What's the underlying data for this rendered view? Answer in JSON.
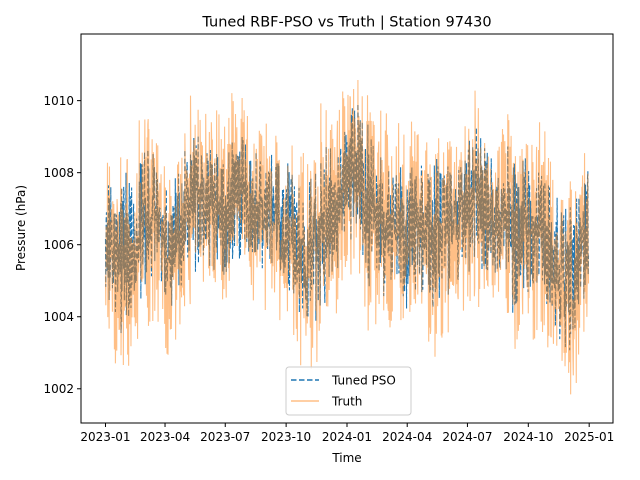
{
  "chart_data": {
    "type": "line",
    "title": "Tuned RBF-PSO vs Truth | Station 97430",
    "xlabel": "Time",
    "ylabel": "Pressure (hPa)",
    "x_range": [
      "2023-01-01",
      "2024-12-31"
    ],
    "xlim": [
      "2022-11-25",
      "2025-02-06"
    ],
    "ylim": [
      1001.05,
      1011.85
    ],
    "x_ticks": [
      "2023-01",
      "2023-04",
      "2023-07",
      "2023-10",
      "2024-01",
      "2024-04",
      "2024-07",
      "2024-10",
      "2025-01"
    ],
    "x_tick_dates": [
      "2023-01-01",
      "2023-04-01",
      "2023-07-01",
      "2023-10-01",
      "2024-01-01",
      "2024-04-01",
      "2024-07-01",
      "2024-10-01",
      "2025-01-01"
    ],
    "y_ticks": [
      1002,
      1004,
      1006,
      1008,
      1010
    ],
    "grid": false,
    "legend_position": "lower center",
    "series": [
      {
        "name": "Tuned PSO",
        "color": "#1f77b4",
        "style": "dashed",
        "envelope_dates": [
          "2023-01-01",
          "2023-01-15",
          "2023-02-01",
          "2023-02-15",
          "2023-03-01",
          "2023-03-15",
          "2023-04-01",
          "2023-04-15",
          "2023-05-01",
          "2023-05-15",
          "2023-06-01",
          "2023-06-15",
          "2023-07-01",
          "2023-07-15",
          "2023-08-01",
          "2023-08-15",
          "2023-09-01",
          "2023-09-15",
          "2023-10-01",
          "2023-10-15",
          "2023-11-01",
          "2023-11-15",
          "2023-12-01",
          "2023-12-15",
          "2024-01-01",
          "2024-01-15",
          "2024-02-01",
          "2024-02-15",
          "2024-03-01",
          "2024-03-15",
          "2024-04-01",
          "2024-04-15",
          "2024-05-01",
          "2024-05-15",
          "2024-06-01",
          "2024-06-15",
          "2024-07-01",
          "2024-07-15",
          "2024-08-01",
          "2024-08-15",
          "2024-09-01",
          "2024-09-15",
          "2024-10-01",
          "2024-10-15",
          "2024-11-01",
          "2024-11-15",
          "2024-12-01",
          "2024-12-15",
          "2024-12-31"
        ],
        "upper": [
          1008.2,
          1007.6,
          1008.6,
          1007.2,
          1009.6,
          1008.6,
          1007.8,
          1007.9,
          1008.8,
          1009.6,
          1008.5,
          1008.9,
          1008.6,
          1009.4,
          1009.0,
          1008.7,
          1009.0,
          1008.7,
          1008.5,
          1008.2,
          1007.6,
          1008.9,
          1009.0,
          1008.4,
          1009.7,
          1010.0,
          1009.8,
          1009.1,
          1008.9,
          1008.6,
          1008.7,
          1008.6,
          1008.3,
          1008.5,
          1008.7,
          1009.2,
          1009.0,
          1009.7,
          1008.6,
          1008.4,
          1009.1,
          1008.5,
          1008.7,
          1008.5,
          1008.2,
          1007.5,
          1007.4,
          1007.6,
          1008.3
        ],
        "lower": [
          1004.6,
          1003.9,
          1003.1,
          1004.5,
          1004.2,
          1004.6,
          1004.3,
          1004.1,
          1004.7,
          1005.1,
          1005.5,
          1005.2,
          1004.9,
          1005.2,
          1005.7,
          1005.2,
          1005.0,
          1005.3,
          1004.4,
          1004.0,
          1003.4,
          1003.5,
          1004.1,
          1004.9,
          1006.1,
          1005.8,
          1004.7,
          1004.8,
          1004.3,
          1004.5,
          1004.1,
          1004.6,
          1004.6,
          1003.6,
          1004.4,
          1004.8,
          1004.9,
          1005.1,
          1004.7,
          1004.9,
          1004.2,
          1003.9,
          1004.1,
          1004.4,
          1004.0,
          1003.3,
          1003.0,
          1003.2,
          1005.1
        ]
      },
      {
        "name": "Truth",
        "color": "#ff7f0e",
        "style": "solid",
        "envelope_dates": [
          "2023-01-01",
          "2023-01-15",
          "2023-02-01",
          "2023-02-15",
          "2023-03-01",
          "2023-03-15",
          "2023-04-01",
          "2023-04-15",
          "2023-05-01",
          "2023-05-15",
          "2023-06-01",
          "2023-06-15",
          "2023-07-01",
          "2023-07-15",
          "2023-08-01",
          "2023-08-15",
          "2023-09-01",
          "2023-09-15",
          "2023-10-01",
          "2023-10-15",
          "2023-11-01",
          "2023-11-15",
          "2023-12-01",
          "2023-12-15",
          "2024-01-01",
          "2024-01-15",
          "2024-02-01",
          "2024-02-15",
          "2024-03-01",
          "2024-03-15",
          "2024-04-01",
          "2024-04-15",
          "2024-05-01",
          "2024-05-15",
          "2024-06-01",
          "2024-06-15",
          "2024-07-01",
          "2024-07-15",
          "2024-08-01",
          "2024-08-15",
          "2024-09-01",
          "2024-09-15",
          "2024-10-01",
          "2024-10-15",
          "2024-11-01",
          "2024-11-15",
          "2024-12-01",
          "2024-12-15",
          "2024-12-31"
        ],
        "upper": [
          1009.4,
          1008.2,
          1009.2,
          1008.0,
          1011.4,
          1009.8,
          1008.6,
          1008.6,
          1009.6,
          1010.6,
          1009.7,
          1009.9,
          1009.6,
          1010.6,
          1010.1,
          1009.6,
          1010.2,
          1009.6,
          1009.1,
          1009.0,
          1008.6,
          1010.0,
          1010.1,
          1009.5,
          1011.2,
          1011.3,
          1010.6,
          1010.0,
          1009.8,
          1009.4,
          1009.6,
          1009.5,
          1009.2,
          1009.6,
          1009.6,
          1010.2,
          1009.8,
          1010.5,
          1009.7,
          1009.3,
          1010.0,
          1009.5,
          1009.8,
          1009.7,
          1009.4,
          1008.4,
          1008.1,
          1008.5,
          1009.3
        ],
        "lower": [
          1003.7,
          1002.6,
          1001.5,
          1003.2,
          1003.0,
          1003.4,
          1002.9,
          1002.5,
          1003.5,
          1004.2,
          1004.6,
          1004.3,
          1003.9,
          1004.5,
          1004.8,
          1004.3,
          1004.1,
          1004.3,
          1003.3,
          1002.8,
          1002.4,
          1002.5,
          1003.1,
          1004.0,
          1005.2,
          1004.7,
          1003.3,
          1003.5,
          1003.0,
          1003.3,
          1003.0,
          1003.5,
          1003.5,
          1002.2,
          1003.2,
          1003.9,
          1004.0,
          1004.2,
          1003.7,
          1004.0,
          1003.1,
          1002.6,
          1002.9,
          1003.3,
          1002.9,
          1001.9,
          1001.6,
          1001.7,
          1003.8
        ]
      }
    ]
  }
}
